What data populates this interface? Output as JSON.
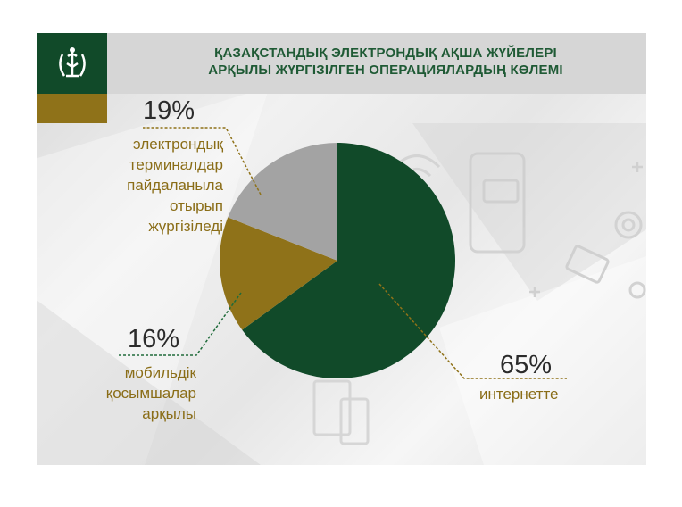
{
  "header": {
    "title_line1": "ҚАЗАҚСТАНДЫҚ ЭЛЕКТРОНДЫҚ АҚША ЖҮЙЕЛЕРІ",
    "title_line2": "АРҚЫЛЫ ЖҮРГІЗІЛГЕН ОПЕРАЦИЯЛАРДЫҢ КӨЛЕМІ",
    "logo_icon": "wheat-emblem-icon"
  },
  "colors": {
    "green": "#114a29",
    "gold": "#8f7219",
    "gray": "#a3a3a3"
  },
  "chart_data": {
    "type": "pie",
    "title": "ҚАЗАҚСТАНДЫҚ ЭЛЕКТРОНДЫҚ АҚША ЖҮЙЕЛЕРІ АРҚЫЛЫ ЖҮРГІЗІЛГЕН ОПЕРАЦИЯЛАРДЫҢ КӨЛЕМІ",
    "slices": [
      {
        "value": 65,
        "label": "65%",
        "description": "интернетте",
        "color": "#114a29"
      },
      {
        "value": 16,
        "label": "16%",
        "description": [
          "мобильдік",
          "қосымшалар",
          "арқылы"
        ],
        "color": "#8f7219"
      },
      {
        "value": 19,
        "label": "19%",
        "description": [
          "электрондық",
          "терминалдар",
          "пайдаланыла",
          "отырып",
          "жүргізіледі"
        ],
        "color": "#a3a3a3"
      }
    ]
  }
}
